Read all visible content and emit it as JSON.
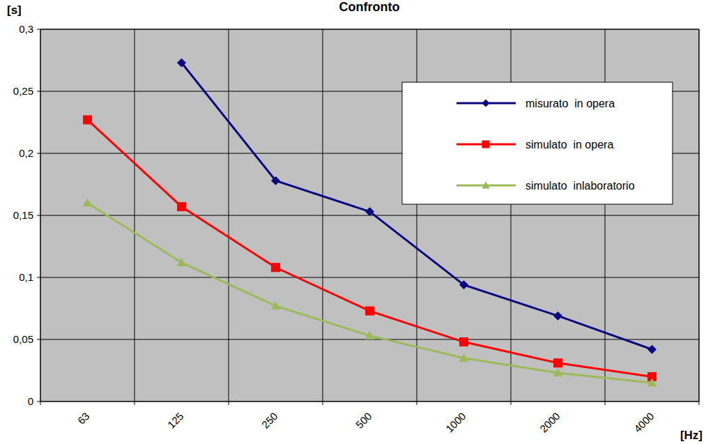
{
  "chart_data": {
    "type": "line",
    "title": "Confronto",
    "y_label": "[s]",
    "x_label": "[Hz]",
    "categories": [
      "63",
      "125",
      "250",
      "500",
      "1000",
      "2000",
      "4000"
    ],
    "series": [
      {
        "name": "misurato  in opera",
        "color": "#0a0a80",
        "marker": "diamond",
        "line_style": "solid",
        "values": [
          null,
          0.273,
          0.178,
          0.153,
          0.094,
          0.069,
          0.042
        ]
      },
      {
        "name": "simulato  in opera",
        "color": "#ff0000",
        "marker": "square",
        "line_style": "solid",
        "values": [
          0.227,
          0.157,
          0.108,
          0.073,
          0.048,
          0.031,
          0.02
        ]
      },
      {
        "name": "simulato  inlaboratorio",
        "color": "#9bbb59",
        "marker": "triangle",
        "line_style": "solid",
        "values": [
          0.16,
          0.112,
          0.077,
          0.053,
          0.035,
          0.023,
          0.015
        ]
      }
    ],
    "ylim": [
      0,
      0.3
    ],
    "yticks": [
      0,
      {
        "value": 0.05,
        "label": "0,05"
      },
      {
        "value": 0.1,
        "label": "0,1"
      },
      {
        "value": 0.15,
        "label": "0,15"
      },
      {
        "value": 0.2,
        "label": "0,2"
      },
      {
        "value": 0.25,
        "label": "0,25"
      },
      {
        "value": 0.3,
        "label": "0,3"
      }
    ],
    "grid": true,
    "legend": "upper right"
  }
}
